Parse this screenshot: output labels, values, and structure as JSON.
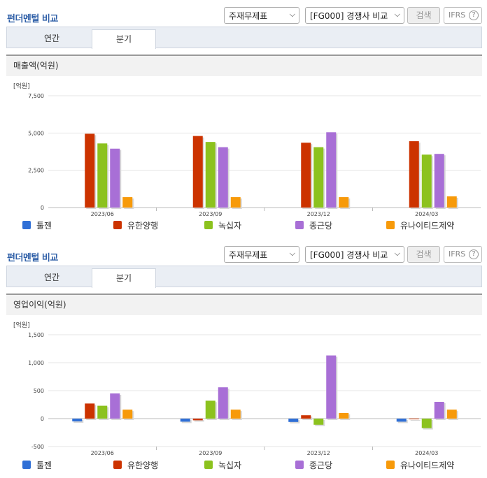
{
  "panels": [
    {
      "title": "펀더멘털 비교",
      "select1": "주재무제표",
      "select2": "[FG000] 경쟁사 비교",
      "search": "검색",
      "ifrs": "IFRS",
      "ifrs_help": "?",
      "tabs": [
        "연간",
        "분기"
      ],
      "active_tab": 1,
      "chart_title": "매출액(억원)"
    },
    {
      "title": "펀더멘털 비교",
      "select1": "주재무제표",
      "select2": "[FG000] 경쟁사 비교",
      "search": "검색",
      "ifrs": "IFRS",
      "ifrs_help": "?",
      "tabs": [
        "연간",
        "분기"
      ],
      "active_tab": 1,
      "chart_title": "영업이익(억원)"
    }
  ],
  "colors": {
    "series": [
      "#2f6fd6",
      "#cc3300",
      "#8cc21e",
      "#a86fd6",
      "#f79a0a"
    ]
  },
  "chart_data": [
    {
      "type": "bar",
      "unit_label": "[억원]",
      "categories": [
        "2023/06",
        "2023/09",
        "2023/12",
        "2024/03"
      ],
      "ylim": [
        0,
        7500
      ],
      "yticks": [
        0,
        2500,
        5000,
        7500
      ],
      "ytick_labels": [
        "0",
        "2,500",
        "5,000",
        "7,500"
      ],
      "series": [
        {
          "name": "툴젠",
          "values": [
            0,
            0,
            0,
            0
          ]
        },
        {
          "name": "유한양행",
          "values": [
            4950,
            4800,
            4350,
            4450
          ]
        },
        {
          "name": "녹십자",
          "values": [
            4300,
            4400,
            4050,
            3550
          ]
        },
        {
          "name": "종근당",
          "values": [
            3950,
            4050,
            5050,
            3600
          ]
        },
        {
          "name": "유나이티드제약",
          "values": [
            700,
            700,
            700,
            750
          ]
        }
      ]
    },
    {
      "type": "bar",
      "unit_label": "[억원]",
      "categories": [
        "2023/06",
        "2023/09",
        "2023/12",
        "2024/03"
      ],
      "ylim": [
        -500,
        1500
      ],
      "yticks": [
        -500,
        0,
        500,
        1000,
        1500
      ],
      "ytick_labels": [
        "-500",
        "0",
        "500",
        "1,000",
        "1,500"
      ],
      "series": [
        {
          "name": "툴젠",
          "values": [
            -50,
            -55,
            -60,
            -55
          ]
        },
        {
          "name": "유한양행",
          "values": [
            270,
            -30,
            60,
            0
          ]
        },
        {
          "name": "녹십자",
          "values": [
            230,
            320,
            -110,
            -170
          ]
        },
        {
          "name": "종근당",
          "values": [
            450,
            560,
            1130,
            300
          ]
        },
        {
          "name": "유나이티드제약",
          "values": [
            160,
            160,
            100,
            160
          ]
        }
      ]
    }
  ]
}
